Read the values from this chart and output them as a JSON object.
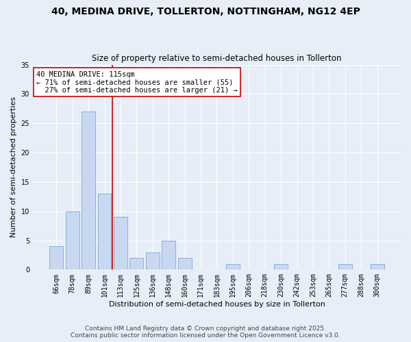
{
  "title": "40, MEDINA DRIVE, TOLLERTON, NOTTINGHAM, NG12 4EP",
  "subtitle": "Size of property relative to semi-detached houses in Tollerton",
  "xlabel": "Distribution of semi-detached houses by size in Tollerton",
  "ylabel": "Number of semi-detached properties",
  "bar_color": "#c8d8f0",
  "bar_edge_color": "#7aa8d8",
  "background_color": "#e8eef8",
  "grid_color": "#ffffff",
  "categories": [
    "66sqm",
    "78sqm",
    "89sqm",
    "101sqm",
    "113sqm",
    "125sqm",
    "136sqm",
    "148sqm",
    "160sqm",
    "171sqm",
    "183sqm",
    "195sqm",
    "206sqm",
    "218sqm",
    "230sqm",
    "242sqm",
    "253sqm",
    "265sqm",
    "277sqm",
    "288sqm",
    "300sqm"
  ],
  "values": [
    4,
    10,
    27,
    13,
    9,
    2,
    3,
    5,
    2,
    0,
    0,
    1,
    0,
    0,
    1,
    0,
    0,
    0,
    1,
    0,
    1
  ],
  "ref_line_index": 4,
  "ref_line_color": "#cc0000",
  "annotation_line1": "40 MEDINA DRIVE: 115sqm",
  "annotation_line2": "← 71% of semi-detached houses are smaller (55)",
  "annotation_line3": "  27% of semi-detached houses are larger (21) →",
  "annotation_box_color": "#ffffff",
  "annotation_box_edge_color": "#cc0000",
  "ylim": [
    0,
    35
  ],
  "yticks": [
    0,
    5,
    10,
    15,
    20,
    25,
    30,
    35
  ],
  "footer_text": "Contains HM Land Registry data © Crown copyright and database right 2025.\nContains public sector information licensed under the Open Government Licence v3.0.",
  "title_fontsize": 10,
  "subtitle_fontsize": 8.5,
  "xlabel_fontsize": 8,
  "ylabel_fontsize": 8,
  "tick_fontsize": 7,
  "annotation_fontsize": 7.5,
  "footer_fontsize": 6.5
}
